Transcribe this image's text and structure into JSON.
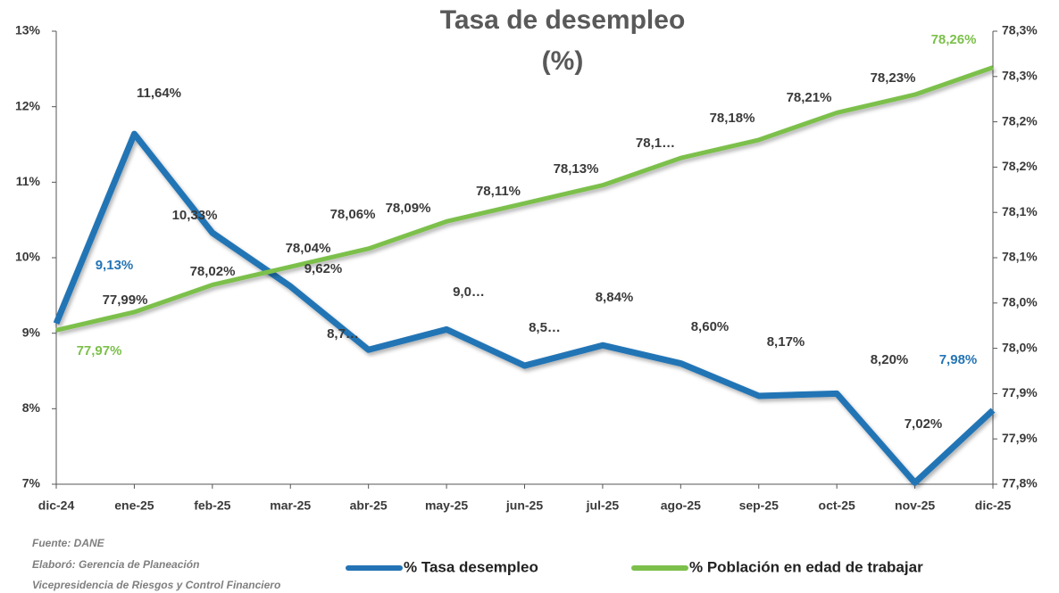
{
  "chart_data": {
    "type": "line",
    "title": "Tasa de desempleo",
    "subtitle": "(%)",
    "categories": [
      "dic-24",
      "ene-25",
      "feb-25",
      "mar-25",
      "abr-25",
      "may-25",
      "jun-25",
      "jul-25",
      "ago-25",
      "sep-25",
      "oct-25",
      "nov-25",
      "dic-25"
    ],
    "series": [
      {
        "name": "% Tasa desempleo",
        "color": "#2474b5",
        "values": [
          9.13,
          11.64,
          10.33,
          9.62,
          8.78,
          9.05,
          8.57,
          8.84,
          8.6,
          8.17,
          8.2,
          7.02,
          7.98
        ],
        "value_labels": [
          "9,13%",
          "11,64%",
          "10,33%",
          "9,62%",
          "8,7…",
          "9,0…",
          "8,5…",
          "8,84%",
          "8,60%",
          "8,17%",
          "8,20%",
          "7,02%",
          "7,98%"
        ]
      },
      {
        "name": "% Población en edad de trabajar",
        "color": "#7cc04b",
        "axis": "y2",
        "values": [
          77.97,
          77.99,
          78.02,
          78.04,
          78.06,
          78.09,
          78.11,
          78.13,
          78.16,
          78.18,
          78.21,
          78.23,
          78.26
        ],
        "value_labels": [
          "77,97%",
          "77,99%",
          "78,02%",
          "78,04%",
          "78,06%",
          "78,09%",
          "78,11%",
          "78,13%",
          "78,1…",
          "78,18%",
          "78,21%",
          "78,23%",
          "78,26%"
        ]
      }
    ],
    "ylim": [
      7,
      13
    ],
    "yticks": [
      {
        "value": 7,
        "label": "7%"
      },
      {
        "value": 8,
        "label": "8%"
      },
      {
        "value": 9,
        "label": "9%"
      },
      {
        "value": 10,
        "label": "10%"
      },
      {
        "value": 11,
        "label": "11%"
      },
      {
        "value": 12,
        "label": "12%"
      },
      {
        "value": 13,
        "label": "13%"
      }
    ],
    "y2lim": [
      77.8,
      78.3
    ],
    "y2ticks": [
      {
        "value": 77.8,
        "label": "77,8%"
      },
      {
        "value": 77.85,
        "label": "77,9%"
      },
      {
        "value": 77.9,
        "label": "77,9%"
      },
      {
        "value": 77.95,
        "label": "78,0%"
      },
      {
        "value": 78.0,
        "label": "78,0%"
      },
      {
        "value": 78.05,
        "label": "78,1%"
      },
      {
        "value": 78.1,
        "label": "78,1%"
      },
      {
        "value": 78.15,
        "label": "78,2%"
      },
      {
        "value": 78.2,
        "label": "78,2%"
      },
      {
        "value": 78.25,
        "label": "78,3%"
      },
      {
        "value": 78.3,
        "label": "78,3%"
      }
    ],
    "notes": [
      "Fuente:  DANE",
      "Elaboró: Gerencia de Planeación",
      "Vicepresidencia de Riesgos y Control Financiero"
    ],
    "legend": "bottom"
  }
}
